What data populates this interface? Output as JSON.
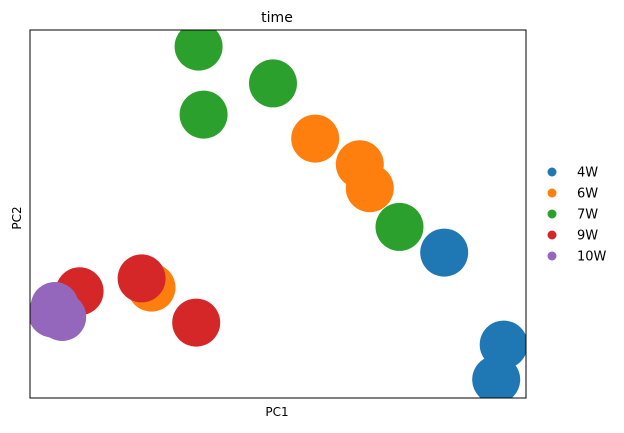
{
  "chart_data": {
    "type": "scatter",
    "title": "time",
    "xlabel": "PC1",
    "ylabel": "PC2",
    "xlim": [
      0,
      100
    ],
    "ylim": [
      0,
      100
    ],
    "grid": false,
    "ticks": false,
    "legend_position": "right",
    "series": [
      {
        "name": "4W",
        "color": "#1f77b4",
        "points": [
          {
            "x": 83.5,
            "y": 39.5
          },
          {
            "x": 95.5,
            "y": 14.5
          },
          {
            "x": 94.0,
            "y": 5.0
          }
        ]
      },
      {
        "name": "6W",
        "color": "#ff7f0e",
        "points": [
          {
            "x": 57.5,
            "y": 70.5
          },
          {
            "x": 66.5,
            "y": 63.5
          },
          {
            "x": 68.5,
            "y": 57.0
          },
          {
            "x": 24.5,
            "y": 30.0
          }
        ]
      },
      {
        "name": "7W",
        "color": "#2ca02c",
        "points": [
          {
            "x": 34.0,
            "y": 95.5
          },
          {
            "x": 49.0,
            "y": 85.5
          },
          {
            "x": 35.0,
            "y": 77.0
          },
          {
            "x": 74.5,
            "y": 46.5
          }
        ]
      },
      {
        "name": "9W",
        "color": "#d62728",
        "points": [
          {
            "x": 10.0,
            "y": 29.0
          },
          {
            "x": 22.5,
            "y": 32.5
          },
          {
            "x": 33.5,
            "y": 20.5
          }
        ]
      },
      {
        "name": "10W",
        "color": "#9467bd",
        "points": [
          {
            "x": 5.0,
            "y": 25.0
          },
          {
            "x": 4.5,
            "y": 23.0
          },
          {
            "x": 6.5,
            "y": 22.0
          }
        ]
      }
    ]
  }
}
